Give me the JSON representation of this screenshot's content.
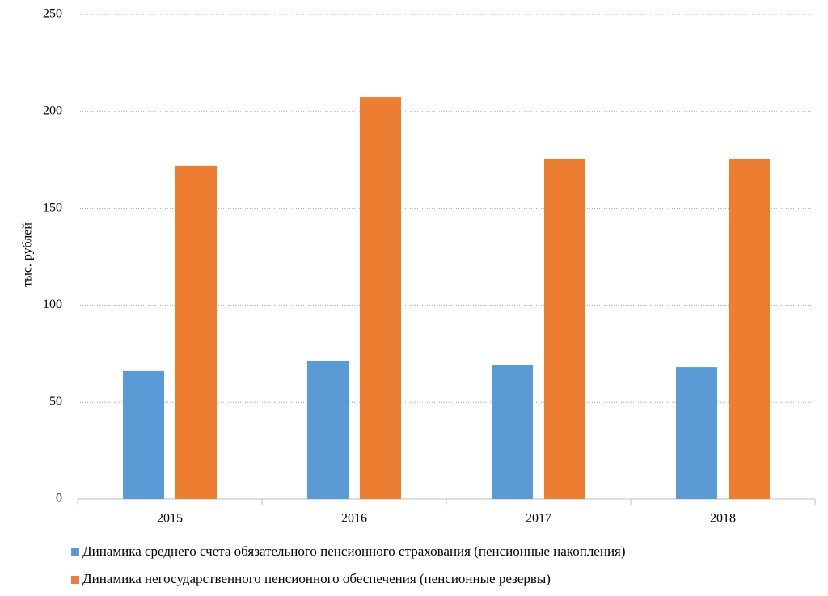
{
  "chart_data": {
    "type": "bar",
    "y_label": "тыс. рублей",
    "categories": [
      "2015",
      "2016",
      "2017",
      "2018"
    ],
    "series": [
      {
        "name": "Динамика среднего счета обязательного пенсионного страхования (пенсионные накопления)",
        "color": "#5b9bd5",
        "values": [
          66,
          71,
          69.3,
          68
        ]
      },
      {
        "name": "Динамика негосударственного пенсионного обеспечения (пенсионные резервы)",
        "color": "#ed7d31",
        "values": [
          172,
          207.4,
          175.7,
          175.3
        ]
      }
    ],
    "ylim": [
      0,
      250
    ],
    "yticks": [
      0,
      50,
      100,
      150,
      200,
      250
    ],
    "grid": true,
    "legend": "bottom"
  }
}
